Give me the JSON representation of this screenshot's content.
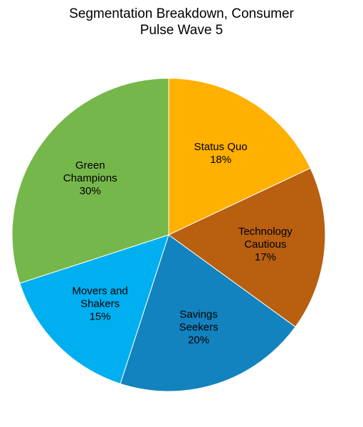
{
  "chart_data": {
    "type": "pie",
    "title_lines": [
      "Segmentation Breakdown, Consumer",
      "Pulse Wave 5"
    ],
    "slices": [
      {
        "label_lines": [
          "Status Quo"
        ],
        "value": 18,
        "value_label": "18%",
        "color": "#FFB000"
      },
      {
        "label_lines": [
          "Technology",
          "Cautious"
        ],
        "value": 17,
        "value_label": "17%",
        "color": "#B85F10"
      },
      {
        "label_lines": [
          "Savings",
          "Seekers"
        ],
        "value": 20,
        "value_label": "20%",
        "color": "#1283BE"
      },
      {
        "label_lines": [
          "Movers and",
          "Shakers"
        ],
        "value": 15,
        "value_label": "15%",
        "color": "#00AFEF"
      },
      {
        "label_lines": [
          "Green",
          "Champions"
        ],
        "value": 30,
        "value_label": "30%",
        "color": "#76B74B"
      }
    ],
    "start": "top",
    "direction": "clockwise",
    "legend": "none"
  }
}
